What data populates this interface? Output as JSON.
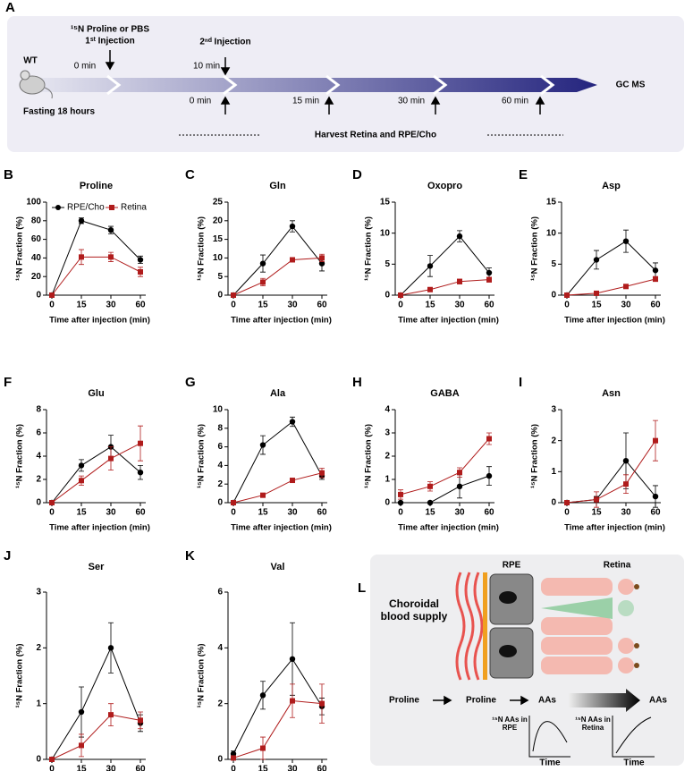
{
  "panel_a": {
    "panel": "A",
    "mouse": "WT",
    "fasting": "Fasting 18 hours",
    "injection1": "¹⁵N Proline or PBS",
    "injection1_label": "1ˢᵗ Injection",
    "injection2_label": "2ⁿᵈ Injection",
    "time1": "0 min",
    "time2": "10 min",
    "harvest_times": [
      "0 min",
      "15 min",
      "30 min",
      "60 min"
    ],
    "endpoint": "GC MS",
    "harvest": "Harvest Retina and  RPE/Cho"
  },
  "panel_l": {
    "panel": "L",
    "rpe": "RPE",
    "retina": "Retina",
    "blood": "Choroidal blood supply",
    "flow": [
      "Proline",
      "Proline",
      "AAs",
      "AAs"
    ],
    "plot_rpe": "¹⁵N AAs in RPE",
    "plot_retina": "¹⁵N AAs in Retina",
    "time": "Time"
  },
  "chart_data": [
    {
      "type": "line",
      "panel": "B",
      "title": "Proline",
      "ylabel": "¹⁵N Fraction (%)",
      "xlabel": "Time after injection (min)",
      "categories": [
        "0",
        "15",
        "30",
        "60"
      ],
      "ylim": [
        0,
        100
      ],
      "yticks": [
        0,
        20,
        40,
        60,
        80,
        100
      ],
      "legend": "upper left",
      "series": [
        {
          "name": "RPE/Cho",
          "color": "#000000",
          "marker": "circle",
          "values": [
            0,
            80,
            70,
            38
          ],
          "errors": [
            0,
            3,
            4,
            4
          ]
        },
        {
          "name": "Retina",
          "color": "#b01c1c",
          "marker": "square",
          "values": [
            0,
            41,
            41,
            25
          ],
          "errors": [
            0,
            8,
            5,
            5
          ]
        }
      ]
    },
    {
      "type": "line",
      "panel": "C",
      "title": "Gln",
      "ylabel": "¹⁵N Fraction (%)",
      "xlabel": "Time after injection (min)",
      "categories": [
        "0",
        "15",
        "30",
        "60"
      ],
      "ylim": [
        0,
        25
      ],
      "yticks": [
        0,
        5,
        10,
        15,
        20,
        25
      ],
      "series": [
        {
          "color": "#000000",
          "marker": "circle",
          "values": [
            0,
            8.5,
            18.5,
            8.5
          ],
          "errors": [
            0,
            2.3,
            1.5,
            2
          ]
        },
        {
          "color": "#b01c1c",
          "marker": "square",
          "values": [
            0,
            3.5,
            9.5,
            10
          ],
          "errors": [
            0,
            1,
            0.5,
            1
          ]
        }
      ]
    },
    {
      "type": "line",
      "panel": "D",
      "title": "Oxopro",
      "ylabel": "¹⁵N Fraction (%)",
      "xlabel": "Time after injection (min)",
      "categories": [
        "0",
        "15",
        "30",
        "60"
      ],
      "ylim": [
        0,
        15
      ],
      "yticks": [
        0,
        5,
        10,
        15
      ],
      "series": [
        {
          "color": "#000000",
          "marker": "circle",
          "values": [
            0,
            4.7,
            9.5,
            3.6
          ],
          "errors": [
            0,
            1.7,
            0.9,
            0.8
          ]
        },
        {
          "color": "#b01c1c",
          "marker": "square",
          "values": [
            0,
            0.9,
            2.2,
            2.5
          ],
          "errors": [
            0,
            0.3,
            0.4,
            0.4
          ]
        }
      ]
    },
    {
      "type": "line",
      "panel": "E",
      "title": "Asp",
      "ylabel": "¹⁵N Fraction (%)",
      "xlabel": "Time after injection (min)",
      "categories": [
        "0",
        "15",
        "30",
        "60"
      ],
      "ylim": [
        0,
        15
      ],
      "yticks": [
        0,
        5,
        10,
        15
      ],
      "series": [
        {
          "color": "#000000",
          "marker": "circle",
          "values": [
            0,
            5.7,
            8.7,
            4
          ],
          "errors": [
            0,
            1.5,
            1.8,
            1.2
          ]
        },
        {
          "color": "#b01c1c",
          "marker": "square",
          "values": [
            0,
            0.3,
            1.4,
            2.6
          ],
          "errors": [
            0,
            0.1,
            0.2,
            0.4
          ]
        }
      ]
    },
    {
      "type": "line",
      "panel": "F",
      "title": "Glu",
      "ylabel": "¹⁵N Fraction (%)",
      "xlabel": "Time after injection (min)",
      "categories": [
        "0",
        "15",
        "30",
        "60"
      ],
      "ylim": [
        0,
        8
      ],
      "yticks": [
        0,
        2,
        4,
        6,
        8
      ],
      "series": [
        {
          "color": "#000000",
          "marker": "circle",
          "values": [
            0,
            3.2,
            4.8,
            2.6
          ],
          "errors": [
            0,
            0.5,
            1,
            0.6
          ]
        },
        {
          "color": "#b01c1c",
          "marker": "square",
          "values": [
            0,
            1.9,
            3.8,
            5.1
          ],
          "errors": [
            0,
            0.4,
            1,
            1.5
          ]
        }
      ]
    },
    {
      "type": "line",
      "panel": "G",
      "title": "Ala",
      "ylabel": "¹⁵N Fraction (%)",
      "xlabel": "Time after injection (min)",
      "categories": [
        "0",
        "15",
        "30",
        "60"
      ],
      "ylim": [
        0,
        10
      ],
      "yticks": [
        0,
        2,
        4,
        6,
        8,
        10
      ],
      "series": [
        {
          "color": "#000000",
          "marker": "circle",
          "values": [
            0,
            6.2,
            8.7,
            2.9
          ],
          "errors": [
            0,
            1,
            0.5,
            0.4
          ]
        },
        {
          "color": "#b01c1c",
          "marker": "square",
          "values": [
            0,
            0.8,
            2.4,
            3.2
          ],
          "errors": [
            0,
            0.2,
            0.2,
            0.5
          ]
        }
      ]
    },
    {
      "type": "line",
      "panel": "H",
      "title": "GABA",
      "ylabel": "¹⁵N Fraction (%)",
      "xlabel": "Time after injection (min)",
      "categories": [
        "0",
        "15",
        "30",
        "60"
      ],
      "ylim": [
        0,
        4
      ],
      "yticks": [
        0,
        1,
        2,
        3,
        4
      ],
      "series": [
        {
          "color": "#000000",
          "marker": "circle",
          "values": [
            0,
            0,
            0.7,
            1.15
          ],
          "errors": [
            0,
            0,
            0.5,
            0.4
          ]
        },
        {
          "color": "#b01c1c",
          "marker": "square",
          "values": [
            0.35,
            0.7,
            1.3,
            2.75
          ],
          "errors": [
            0.2,
            0.2,
            0.2,
            0.25
          ]
        }
      ]
    },
    {
      "type": "line",
      "panel": "I",
      "title": "Asn",
      "ylabel": "¹⁵N Fraction (%)",
      "xlabel": "Time after injection (min)",
      "categories": [
        "0",
        "15",
        "30",
        "60"
      ],
      "ylim": [
        0,
        3
      ],
      "yticks": [
        0,
        1,
        2,
        3
      ],
      "series": [
        {
          "color": "#000000",
          "marker": "circle",
          "values": [
            0,
            0.1,
            1.35,
            0.2
          ],
          "errors": [
            0,
            0.1,
            0.9,
            0.35
          ]
        },
        {
          "color": "#b01c1c",
          "marker": "square",
          "values": [
            0,
            0.1,
            0.6,
            2
          ],
          "errors": [
            0,
            0.25,
            0.3,
            0.65
          ]
        }
      ]
    },
    {
      "type": "line",
      "panel": "J",
      "title": "Ser",
      "ylabel": "¹⁵N Fraction (%)",
      "categories": [
        "0",
        "15",
        "30",
        "60"
      ],
      "ylim": [
        0,
        3
      ],
      "yticks": [
        0,
        1,
        2,
        3
      ],
      "series": [
        {
          "color": "#000000",
          "marker": "circle",
          "values": [
            0,
            0.85,
            2,
            0.65
          ],
          "errors": [
            0,
            0.45,
            0.45,
            0.15
          ]
        },
        {
          "color": "#b01c1c",
          "marker": "square",
          "values": [
            0,
            0.25,
            0.8,
            0.7
          ],
          "errors": [
            0,
            0.2,
            0.2,
            0.15
          ]
        }
      ]
    },
    {
      "type": "line",
      "panel": "K",
      "title": "Val",
      "ylabel": "¹⁵N Fraction (%)",
      "categories": [
        "0",
        "15",
        "30",
        "60"
      ],
      "ylim": [
        0,
        6
      ],
      "yticks": [
        0,
        2,
        4,
        6
      ],
      "series": [
        {
          "color": "#000000",
          "marker": "circle",
          "values": [
            0.2,
            2.3,
            3.6,
            1.9
          ],
          "errors": [
            0.1,
            0.5,
            1.3,
            0.3
          ]
        },
        {
          "color": "#b01c1c",
          "marker": "square",
          "values": [
            0.05,
            0.4,
            2.1,
            2
          ],
          "errors": [
            0,
            0.4,
            0.6,
            0.7
          ]
        }
      ]
    }
  ]
}
